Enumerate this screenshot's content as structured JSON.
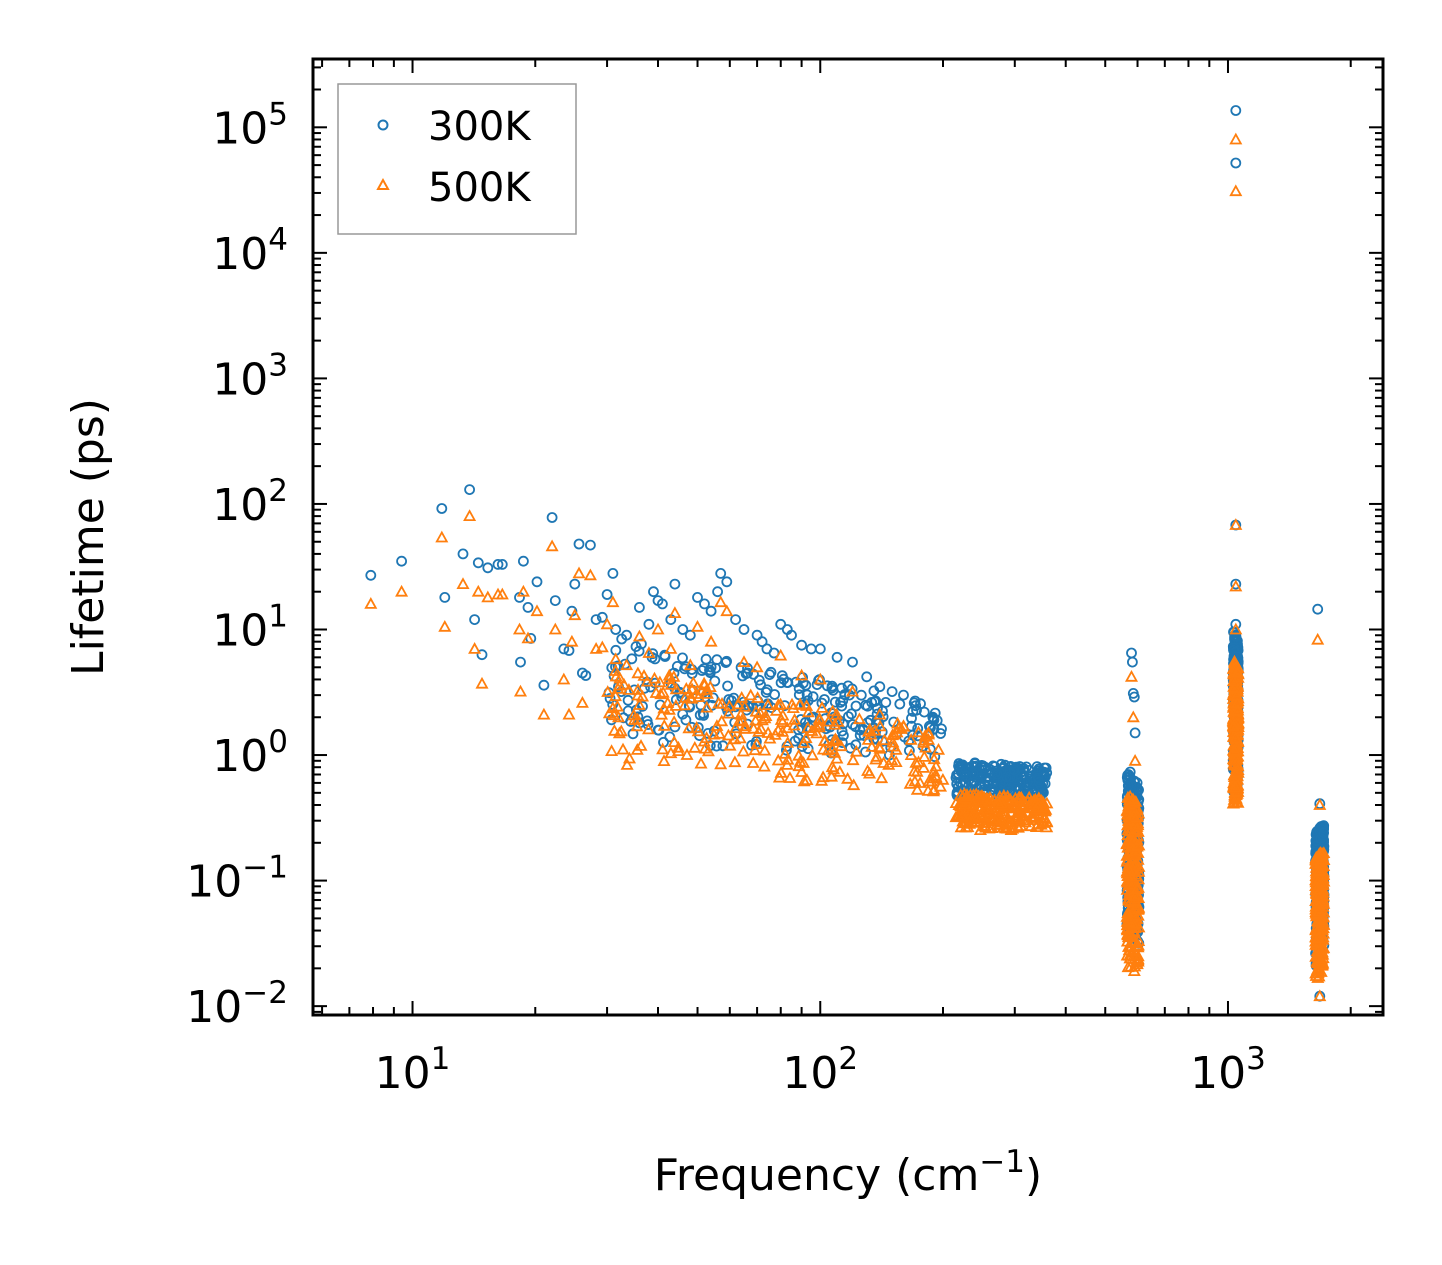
{
  "chart_data": {
    "type": "scatter",
    "title": "",
    "xlabel": "Frequency (cm",
    "xlabel_sup": "−1",
    "xlabel_suffix": ")",
    "ylabel": "Lifetime (ps)",
    "xscale": "log",
    "yscale": "log",
    "xlim": [
      5.7,
      2400
    ],
    "ylim": [
      0.0085,
      350000
    ],
    "x_major_ticks": [
      {
        "value": 10,
        "base": "10",
        "exp": "1"
      },
      {
        "value": 100,
        "base": "10",
        "exp": "2"
      },
      {
        "value": 1000,
        "base": "10",
        "exp": "3"
      }
    ],
    "y_major_ticks": [
      {
        "value": 0.01,
        "base": "10",
        "exp": "−2"
      },
      {
        "value": 0.1,
        "base": "10",
        "exp": "−1"
      },
      {
        "value": 1,
        "base": "10",
        "exp": "0"
      },
      {
        "value": 10,
        "base": "10",
        "exp": "1"
      },
      {
        "value": 100,
        "base": "10",
        "exp": "2"
      },
      {
        "value": 1000,
        "base": "10",
        "exp": "3"
      },
      {
        "value": 10000,
        "base": "10",
        "exp": "4"
      },
      {
        "value": 100000,
        "base": "10",
        "exp": "5"
      }
    ],
    "legend_position": "top-left",
    "series": [
      {
        "name": "300K",
        "marker": "circle",
        "color": "#1f77b4",
        "points": [
          [
            7.9,
            27
          ],
          [
            9.4,
            35
          ],
          [
            11.8,
            92
          ],
          [
            12,
            18
          ],
          [
            13.3,
            40
          ],
          [
            13.8,
            130
          ],
          [
            14.2,
            12
          ],
          [
            14.5,
            34
          ],
          [
            14.8,
            6.3
          ],
          [
            15.3,
            31
          ],
          [
            16.2,
            33
          ],
          [
            16.6,
            33
          ],
          [
            18.3,
            18
          ],
          [
            18.4,
            5.5
          ],
          [
            18.7,
            35
          ],
          [
            19.2,
            15
          ],
          [
            19.5,
            8.5
          ],
          [
            20.2,
            24
          ],
          [
            21,
            3.6
          ],
          [
            22,
            78
          ],
          [
            22.4,
            17
          ],
          [
            23.5,
            7
          ],
          [
            24.2,
            6.8
          ],
          [
            24.6,
            14
          ],
          [
            25,
            23
          ],
          [
            25.6,
            48
          ],
          [
            26.1,
            4.5
          ],
          [
            26.6,
            4.3
          ],
          [
            27.3,
            47
          ],
          [
            28.2,
            12
          ],
          [
            29.2,
            12.5
          ],
          [
            30,
            19
          ],
          [
            31,
            28
          ],
          [
            31.5,
            10
          ],
          [
            32,
            3.5
          ],
          [
            33.5,
            9
          ],
          [
            35,
            3.3
          ],
          [
            36,
            15
          ],
          [
            38,
            11
          ],
          [
            39,
            20
          ],
          [
            40,
            17
          ],
          [
            41,
            16
          ],
          [
            43,
            12
          ],
          [
            44,
            23
          ],
          [
            46,
            10
          ],
          [
            48,
            9
          ],
          [
            50,
            18
          ],
          [
            52,
            16
          ],
          [
            54,
            14
          ],
          [
            56,
            20
          ],
          [
            57,
            28
          ],
          [
            59,
            24
          ],
          [
            62,
            12
          ],
          [
            65,
            10
          ],
          [
            70,
            9
          ],
          [
            72,
            8
          ],
          [
            74,
            7
          ],
          [
            77,
            6.5
          ],
          [
            80,
            11
          ],
          [
            83,
            10
          ],
          [
            85,
            9
          ],
          [
            90,
            7.5
          ],
          [
            95,
            7
          ],
          [
            100,
            7
          ],
          [
            110,
            6
          ],
          [
            120,
            5.5
          ],
          [
            130,
            4.2
          ],
          [
            140,
            3.5
          ],
          [
            150,
            3.2
          ],
          [
            160,
            3
          ],
          [
            170,
            2.6
          ],
          [
            180,
            2.2
          ],
          [
            190,
            1.9
          ],
          [
            1045,
            136000
          ],
          [
            1045,
            52000
          ],
          [
            1045,
            68
          ],
          [
            1045,
            23
          ],
          [
            1045,
            11
          ],
          [
            1660,
            14.5
          ],
          [
            1680,
            0.41
          ],
          [
            1680,
            0.012
          ],
          [
            580,
            6.5
          ],
          [
            583,
            5.5
          ],
          [
            586,
            3.1
          ],
          [
            589,
            2.9
          ],
          [
            592,
            1.5
          ],
          [
            570,
            0.7
          ],
          [
            575,
            0.035
          ]
        ],
        "clusters": [
          {
            "x_range": [
              30,
              200
            ],
            "y_start": [
              9,
              1.3
            ],
            "y_end": [
              2.5,
              0.9
            ]
          },
          {
            "x_range": [
              215,
              360
            ],
            "y_start": [
              0.9,
              0.45
            ],
            "y_end": [
              0.8,
              0.45
            ]
          },
          {
            "x_range": [
              565,
              605
            ],
            "y_start": [
              0.8,
              0.04
            ],
            "y_end": [
              0.6,
              0.03
            ]
          },
          {
            "x_range": [
              1030,
              1060
            ],
            "y_start": [
              10,
              0.5
            ],
            "y_end": [
              8,
              0.5
            ]
          },
          {
            "x_range": [
              1640,
              1720
            ],
            "y_start": [
              0.25,
              0.02
            ],
            "y_end": [
              0.28,
              0.03
            ]
          }
        ]
      },
      {
        "name": "500K",
        "marker": "triangle",
        "color": "#ff7f0e",
        "points": [
          [
            7.9,
            16
          ],
          [
            9.4,
            20
          ],
          [
            11.8,
            54
          ],
          [
            12,
            10.5
          ],
          [
            13.3,
            23
          ],
          [
            13.8,
            80
          ],
          [
            14.2,
            7
          ],
          [
            14.5,
            20
          ],
          [
            14.8,
            3.7
          ],
          [
            15.3,
            18
          ],
          [
            16.2,
            19
          ],
          [
            16.6,
            19
          ],
          [
            18.3,
            10
          ],
          [
            18.4,
            3.2
          ],
          [
            18.7,
            20
          ],
          [
            19.2,
            8.5
          ],
          [
            20.2,
            14
          ],
          [
            21,
            2.1
          ],
          [
            22,
            46
          ],
          [
            22.4,
            10
          ],
          [
            23.5,
            4
          ],
          [
            24.2,
            2.1
          ],
          [
            24.6,
            8
          ],
          [
            25,
            13
          ],
          [
            25.6,
            28
          ],
          [
            26.1,
            2.6
          ],
          [
            27.3,
            27
          ],
          [
            28.2,
            7
          ],
          [
            29.2,
            7.2
          ],
          [
            30,
            11
          ],
          [
            31,
            16.5
          ],
          [
            31.5,
            5.8
          ],
          [
            32,
            2
          ],
          [
            33.5,
            5.2
          ],
          [
            35,
            1.9
          ],
          [
            36,
            8.8
          ],
          [
            38,
            6.5
          ],
          [
            40,
            10
          ],
          [
            43,
            7
          ],
          [
            44,
            13.5
          ],
          [
            48,
            5.2
          ],
          [
            50,
            10.5
          ],
          [
            54,
            8
          ],
          [
            57,
            16.5
          ],
          [
            59,
            14
          ],
          [
            65,
            5.5
          ],
          [
            70,
            5
          ],
          [
            80,
            6.2
          ],
          [
            90,
            4.3
          ],
          [
            100,
            4
          ],
          [
            120,
            3.2
          ],
          [
            140,
            2.1
          ],
          [
            160,
            1.7
          ],
          [
            180,
            1.3
          ],
          [
            195,
            1.1
          ],
          [
            1045,
            80000
          ],
          [
            1045,
            31000
          ],
          [
            1045,
            68
          ],
          [
            1045,
            22
          ],
          [
            1045,
            10
          ],
          [
            1660,
            8.3
          ],
          [
            1680,
            0.4
          ],
          [
            1680,
            0.012
          ],
          [
            580,
            4.2
          ],
          [
            586,
            2
          ],
          [
            592,
            0.9
          ],
          [
            575,
            0.03
          ]
        ],
        "clusters": [
          {
            "x_range": [
              30,
              200
            ],
            "y_start": [
              5.5,
              0.8
            ],
            "y_end": [
              1.5,
              0.5
            ]
          },
          {
            "x_range": [
              215,
              360
            ],
            "y_start": [
              0.5,
              0.25
            ],
            "y_end": [
              0.45,
              0.25
            ]
          },
          {
            "x_range": [
              565,
              605
            ],
            "y_start": [
              0.5,
              0.02
            ],
            "y_end": [
              0.4,
              0.018
            ]
          },
          {
            "x_range": [
              1030,
              1060
            ],
            "y_start": [
              6,
              0.4
            ],
            "y_end": [
              5,
              0.4
            ]
          },
          {
            "x_range": [
              1640,
              1720
            ],
            "y_start": [
              0.15,
              0.015
            ],
            "y_end": [
              0.18,
              0.02
            ]
          }
        ]
      }
    ]
  }
}
